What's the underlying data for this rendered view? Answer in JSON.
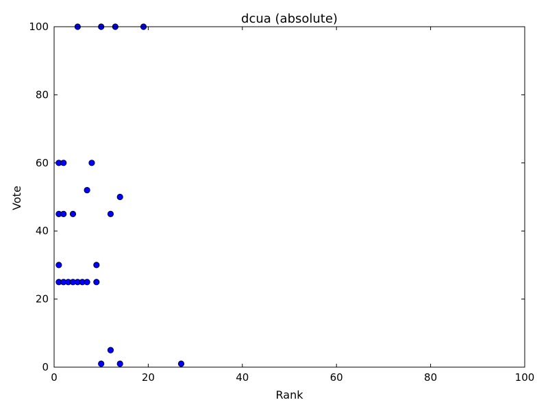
{
  "chart_data": {
    "type": "scatter",
    "title": "dcua (absolute)",
    "xlabel": "Rank",
    "ylabel": "Vote",
    "xlim": [
      0,
      100
    ],
    "ylim": [
      0,
      100
    ],
    "xticks": [
      0,
      20,
      40,
      60,
      80,
      100
    ],
    "yticks": [
      0,
      20,
      40,
      60,
      80,
      100
    ],
    "xtick_labels": [
      "0",
      "20",
      "40",
      "60",
      "80",
      "100"
    ],
    "ytick_labels": [
      "0",
      "20",
      "40",
      "60",
      "80",
      "100"
    ],
    "grid": false,
    "marker_color": "#0000ff",
    "marker_edge_color": "#000000",
    "points": [
      {
        "x": 5,
        "y": 100
      },
      {
        "x": 10,
        "y": 100
      },
      {
        "x": 13,
        "y": 100
      },
      {
        "x": 19,
        "y": 100
      },
      {
        "x": 1,
        "y": 60
      },
      {
        "x": 2,
        "y": 60
      },
      {
        "x": 8,
        "y": 60
      },
      {
        "x": 7,
        "y": 52
      },
      {
        "x": 14,
        "y": 50
      },
      {
        "x": 1,
        "y": 45
      },
      {
        "x": 2,
        "y": 45
      },
      {
        "x": 4,
        "y": 45
      },
      {
        "x": 12,
        "y": 45
      },
      {
        "x": 1,
        "y": 30
      },
      {
        "x": 9,
        "y": 30
      },
      {
        "x": 1,
        "y": 25
      },
      {
        "x": 2,
        "y": 25
      },
      {
        "x": 3,
        "y": 25
      },
      {
        "x": 4,
        "y": 25
      },
      {
        "x": 5,
        "y": 25
      },
      {
        "x": 6,
        "y": 25
      },
      {
        "x": 7,
        "y": 25
      },
      {
        "x": 9,
        "y": 25
      },
      {
        "x": 12,
        "y": 5
      },
      {
        "x": 10,
        "y": 1
      },
      {
        "x": 14,
        "y": 1
      },
      {
        "x": 27,
        "y": 1
      }
    ]
  }
}
